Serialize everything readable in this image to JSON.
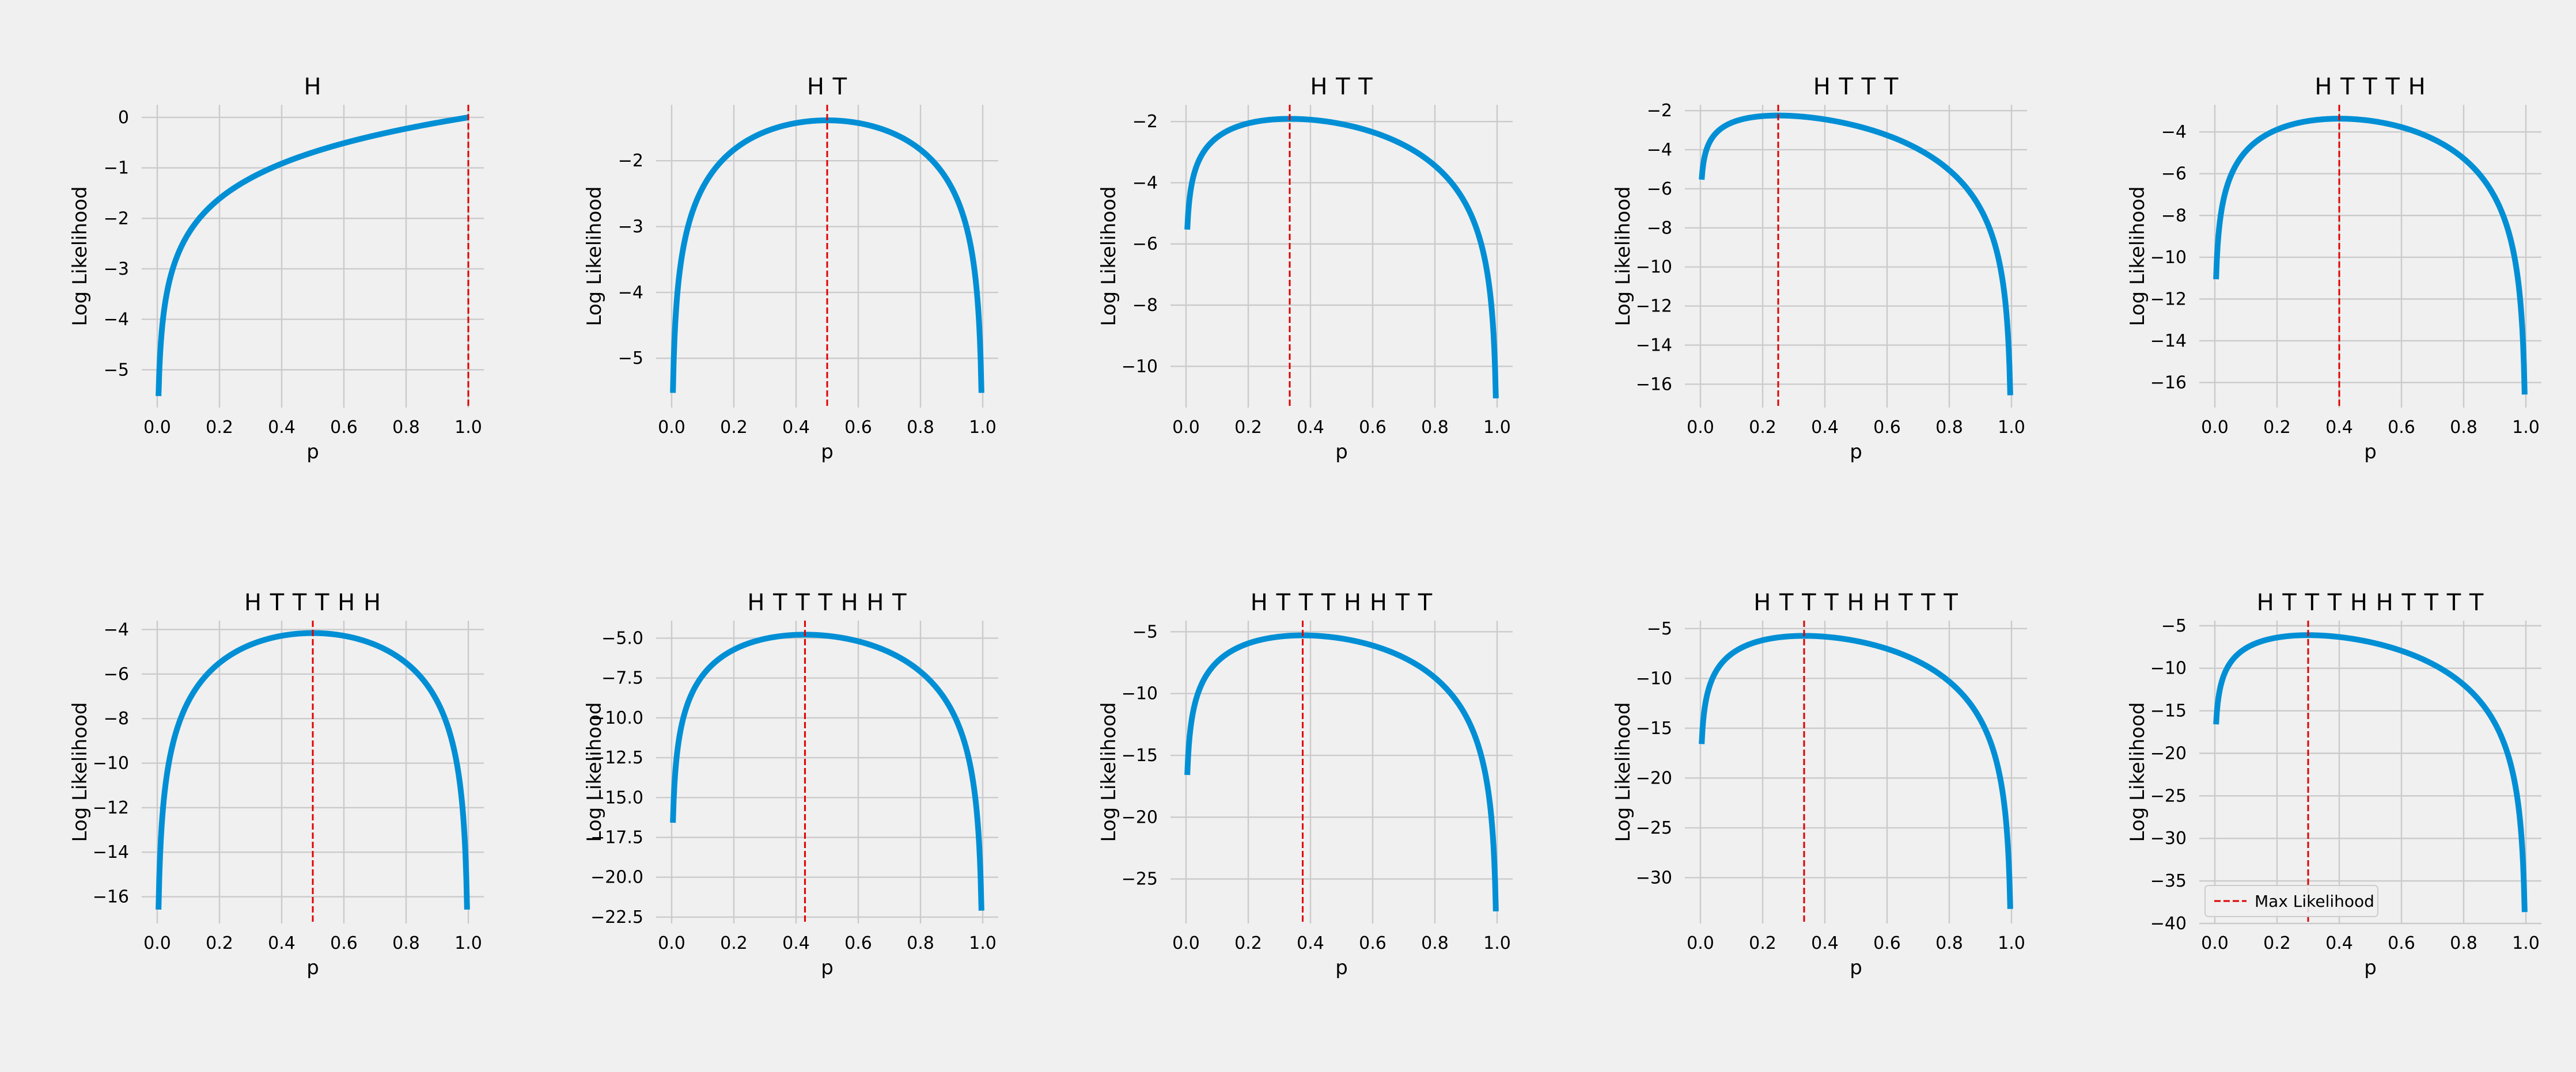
{
  "colors": {
    "background": "#f0f0f0",
    "grid": "#cbcbcb",
    "curve": "#008fd5",
    "max_line": "#e00000"
  },
  "chart_data": [
    {
      "type": "line",
      "title": "H",
      "heads": 1,
      "tails": 0,
      "xlabel": "p",
      "ylabel": "Log Likelihood",
      "xlim": [
        -0.05,
        1.05
      ],
      "ylim": [
        -5.75,
        0.25
      ],
      "xticks": [
        0.0,
        0.2,
        0.4,
        0.6,
        0.8,
        1.0
      ],
      "yticks": [
        -5,
        -4,
        -3,
        -2,
        -1,
        0
      ],
      "p_range": [
        0.004,
        1.0
      ],
      "max_likelihood_p": 1.0
    },
    {
      "type": "line",
      "title": "H T",
      "heads": 1,
      "tails": 1,
      "xlabel": "p",
      "ylabel": "Log Likelihood",
      "xlim": [
        -0.05,
        1.05
      ],
      "ylim": [
        -5.75,
        -1.15
      ],
      "xticks": [
        0.0,
        0.2,
        0.4,
        0.6,
        0.8,
        1.0
      ],
      "yticks": [
        -5,
        -4,
        -3,
        -2
      ],
      "p_range": [
        0.004,
        0.996
      ],
      "max_likelihood_p": 0.5
    },
    {
      "type": "line",
      "title": "H T T",
      "heads": 1,
      "tails": 2,
      "xlabel": "p",
      "ylabel": "Log Likelihood",
      "xlim": [
        -0.05,
        1.05
      ],
      "ylim": [
        -11.35,
        -1.45
      ],
      "xticks": [
        0.0,
        0.2,
        0.4,
        0.6,
        0.8,
        1.0
      ],
      "yticks": [
        -10,
        -8,
        -6,
        -4,
        -2
      ],
      "p_range": [
        0.004,
        0.996
      ],
      "max_likelihood_p": 0.3333
    },
    {
      "type": "line",
      "title": "H T T T",
      "heads": 1,
      "tails": 3,
      "xlabel": "p",
      "ylabel": "Log Likelihood",
      "xlim": [
        -0.05,
        1.05
      ],
      "ylim": [
        -17.2,
        -1.7
      ],
      "xticks": [
        0.0,
        0.2,
        0.4,
        0.6,
        0.8,
        1.0
      ],
      "yticks": [
        -16,
        -14,
        -12,
        -10,
        -8,
        -6,
        -4,
        -2
      ],
      "p_range": [
        0.004,
        0.996
      ],
      "max_likelihood_p": 0.25
    },
    {
      "type": "line",
      "title": "H T T T H",
      "heads": 2,
      "tails": 3,
      "xlabel": "p",
      "ylabel": "Log Likelihood",
      "xlim": [
        -0.05,
        1.05
      ],
      "ylim": [
        -17.2,
        -2.7
      ],
      "xticks": [
        0.0,
        0.2,
        0.4,
        0.6,
        0.8,
        1.0
      ],
      "yticks": [
        -16,
        -14,
        -12,
        -10,
        -8,
        -6,
        -4
      ],
      "p_range": [
        0.004,
        0.996
      ],
      "max_likelihood_p": 0.4
    },
    {
      "type": "line",
      "title": "H T T T H H",
      "heads": 3,
      "tails": 3,
      "xlabel": "p",
      "ylabel": "Log Likelihood",
      "xlim": [
        -0.05,
        1.05
      ],
      "ylim": [
        -17.2,
        -3.6
      ],
      "xticks": [
        0.0,
        0.2,
        0.4,
        0.6,
        0.8,
        1.0
      ],
      "yticks": [
        -16,
        -14,
        -12,
        -10,
        -8,
        -6,
        -4
      ],
      "p_range": [
        0.004,
        0.996
      ],
      "max_likelihood_p": 0.5
    },
    {
      "type": "line",
      "title": "H T T T H H T",
      "heads": 3,
      "tails": 4,
      "xlabel": "p",
      "ylabel": "Log Likelihood",
      "xlim": [
        -0.05,
        1.05
      ],
      "ylim": [
        -22.9,
        -3.9
      ],
      "xticks": [
        0.0,
        0.2,
        0.4,
        0.6,
        0.8,
        1.0
      ],
      "yticks": [
        -22.5,
        -20.0,
        -17.5,
        -15.0,
        -12.5,
        -10.0,
        -7.5,
        -5.0
      ],
      "ytick_labels": [
        "−22.5",
        "−20.0",
        "−17.5",
        "−15.0",
        "−12.5",
        "−10.0",
        "−7.5",
        "−5.0"
      ],
      "p_range": [
        0.004,
        0.996
      ],
      "max_likelihood_p": 0.4286
    },
    {
      "type": "line",
      "title": "H T T T H H T T",
      "heads": 3,
      "tails": 5,
      "xlabel": "p",
      "ylabel": "Log Likelihood",
      "xlim": [
        -0.05,
        1.05
      ],
      "ylim": [
        -28.6,
        -4.1
      ],
      "xticks": [
        0.0,
        0.2,
        0.4,
        0.6,
        0.8,
        1.0
      ],
      "yticks": [
        -25,
        -20,
        -15,
        -10,
        -5
      ],
      "p_range": [
        0.004,
        0.996
      ],
      "max_likelihood_p": 0.375
    },
    {
      "type": "line",
      "title": "H T T T H H T T T",
      "heads": 3,
      "tails": 6,
      "xlabel": "p",
      "ylabel": "Log Likelihood",
      "xlim": [
        -0.05,
        1.05
      ],
      "ylim": [
        -34.6,
        -4.2
      ],
      "xticks": [
        0.0,
        0.2,
        0.4,
        0.6,
        0.8,
        1.0
      ],
      "yticks": [
        -30,
        -25,
        -20,
        -15,
        -10,
        -5
      ],
      "p_range": [
        0.004,
        0.996
      ],
      "max_likelihood_p": 0.3333
    },
    {
      "type": "line",
      "title": "H T T T H H T T T T",
      "heads": 3,
      "tails": 7,
      "xlabel": "p",
      "ylabel": "Log Likelihood",
      "xlim": [
        -0.05,
        1.05
      ],
      "ylim": [
        -40.0,
        -4.4
      ],
      "xticks": [
        0.0,
        0.2,
        0.4,
        0.6,
        0.8,
        1.0
      ],
      "yticks": [
        -40,
        -35,
        -30,
        -25,
        -20,
        -15,
        -10,
        -5
      ],
      "p_range": [
        0.004,
        0.996
      ],
      "max_likelihood_p": 0.3,
      "legend": {
        "label": "Max Likelihood",
        "placement": "lower-left"
      }
    }
  ]
}
